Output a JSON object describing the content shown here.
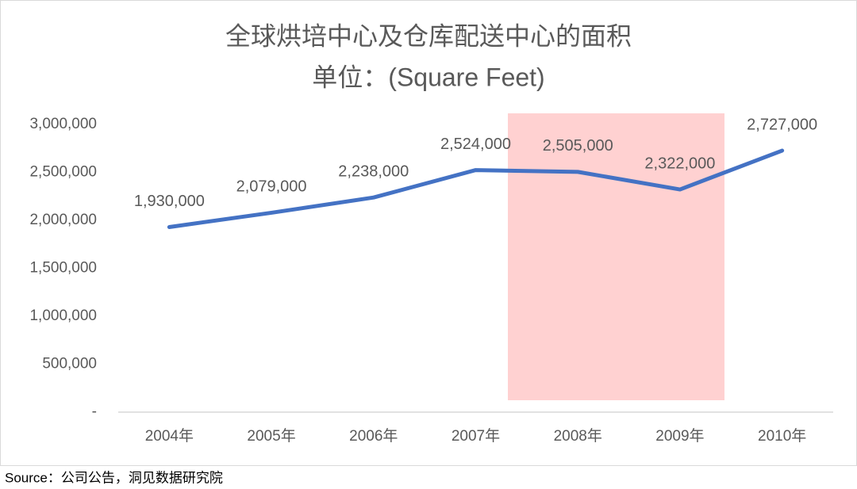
{
  "chart_data": {
    "type": "line",
    "title": "全球烘培中心及仓库配送中心的面积",
    "subtitle": "单位：(Square Feet)",
    "categories": [
      "2004年",
      "2005年",
      "2006年",
      "2007年",
      "2008年",
      "2009年",
      "2010年"
    ],
    "series": [
      {
        "name": "面积",
        "color": "#4472c4",
        "values": [
          1930000,
          2079000,
          2238000,
          2524000,
          2505000,
          2322000,
          2727000
        ],
        "value_labels": [
          "1,930,000",
          "2,079,000",
          "2,238,000",
          "2,524,000",
          "2,505,000",
          "2,322,000",
          "2,727,000"
        ]
      }
    ],
    "ylim": [
      0,
      3000000
    ],
    "yticks": [
      {
        "value": 0,
        "label": "-"
      },
      {
        "value": 500000,
        "label": "500,000"
      },
      {
        "value": 1000000,
        "label": "1,000,000"
      },
      {
        "value": 1500000,
        "label": "1,500,000"
      },
      {
        "value": 2000000,
        "label": "2,000,000"
      },
      {
        "value": 2500000,
        "label": "2,500,000"
      },
      {
        "value": 3000000,
        "label": "3,000,000"
      }
    ],
    "grid": false
  },
  "source": "Source：公司公告，洞见数据研究院"
}
